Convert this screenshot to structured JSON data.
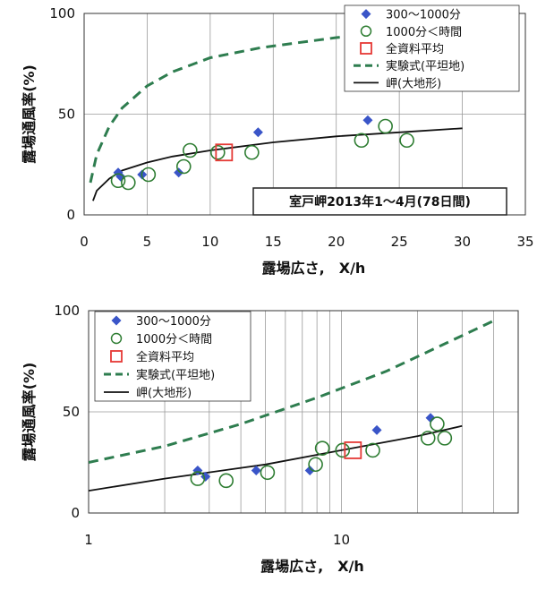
{
  "chart_data": [
    {
      "type": "scatter",
      "x_scale": "linear",
      "xlabel": "露場広さ,　X/h",
      "ylabel": "露場通風率(%)",
      "xlim": [
        0,
        35
      ],
      "ylim": [
        0,
        100
      ],
      "x_ticks": [
        "0",
        "5",
        "10",
        "15",
        "20",
        "25",
        "30",
        "35"
      ],
      "y_ticks": [
        "0",
        "50",
        "100"
      ],
      "grid": true,
      "legend_position": "top-right",
      "annotation": "室戸岬2013年1～4月(78日間)",
      "series": [
        {
          "name": "300～1000分",
          "kind": "diamond",
          "color": "#3a55c8",
          "points": [
            [
              2.7,
              21
            ],
            [
              2.9,
              19
            ],
            [
              4.6,
              20
            ],
            [
              7.5,
              21
            ],
            [
              13.8,
              41
            ],
            [
              22.5,
              47
            ]
          ]
        },
        {
          "name": "1000分＜時間",
          "kind": "circle",
          "color": "#2e7d32",
          "points": [
            [
              2.7,
              17
            ],
            [
              3.5,
              16
            ],
            [
              5.1,
              20
            ],
            [
              7.9,
              24
            ],
            [
              8.4,
              32
            ],
            [
              10.6,
              31
            ],
            [
              13.3,
              31
            ],
            [
              22.0,
              37
            ],
            [
              23.9,
              44
            ],
            [
              25.6,
              37
            ]
          ]
        },
        {
          "name": "全資料平均",
          "kind": "square",
          "color": "#e53935",
          "points": [
            [
              11.1,
              31
            ]
          ]
        },
        {
          "name": "実験式(平坦地)",
          "kind": "dash-line",
          "color": "#2e7d4f",
          "points": [
            [
              0.5,
              16
            ],
            [
              1,
              30
            ],
            [
              2,
              44
            ],
            [
              3,
              53
            ],
            [
              5,
              64
            ],
            [
              7,
              71
            ],
            [
              10,
              78
            ],
            [
              14,
              83
            ],
            [
              20,
              88
            ],
            [
              24,
              90
            ]
          ]
        },
        {
          "name": "岬(大地形)",
          "kind": "solid-line",
          "color": "#111111",
          "points": [
            [
              0.7,
              7
            ],
            [
              1,
              12
            ],
            [
              2,
              18
            ],
            [
              3,
              22
            ],
            [
              5,
              26
            ],
            [
              7,
              29
            ],
            [
              10,
              32
            ],
            [
              15,
              36
            ],
            [
              20,
              39
            ],
            [
              25,
              41
            ],
            [
              30,
              43
            ]
          ]
        }
      ]
    },
    {
      "type": "scatter",
      "x_scale": "log",
      "xlabel": "露場広さ,　X/h",
      "ylabel": "露場通風率(%)",
      "xlim": [
        1,
        50
      ],
      "ylim": [
        0,
        100
      ],
      "x_ticks": [
        "1",
        "10"
      ],
      "y_ticks": [
        "0",
        "50",
        "100"
      ],
      "grid": true,
      "legend_position": "top-left",
      "series": [
        {
          "name": "300～1000分",
          "kind": "diamond",
          "color": "#3a55c8",
          "points": [
            [
              2.7,
              21
            ],
            [
              2.9,
              18
            ],
            [
              4.6,
              21
            ],
            [
              7.5,
              21
            ],
            [
              13.8,
              41
            ],
            [
              22.5,
              47
            ]
          ]
        },
        {
          "name": "1000分＜時間",
          "kind": "circle",
          "color": "#2e7d32",
          "points": [
            [
              2.7,
              17
            ],
            [
              3.5,
              16
            ],
            [
              5.1,
              20
            ],
            [
              7.9,
              24
            ],
            [
              8.4,
              32
            ],
            [
              10.1,
              31
            ],
            [
              13.3,
              31
            ],
            [
              22.0,
              37
            ],
            [
              23.9,
              44
            ],
            [
              25.6,
              37
            ]
          ]
        },
        {
          "name": "全資料平均",
          "kind": "square",
          "color": "#e53935",
          "points": [
            [
              11.1,
              31
            ]
          ]
        },
        {
          "name": "実験式(平坦地)",
          "kind": "dash-line",
          "color": "#2e7d4f",
          "points": [
            [
              1,
              25
            ],
            [
              2,
              33
            ],
            [
              4,
              44
            ],
            [
              8,
              57
            ],
            [
              15,
              70
            ],
            [
              25,
              83
            ],
            [
              40,
              95
            ]
          ]
        },
        {
          "name": "岬(大地形)",
          "kind": "solid-line",
          "color": "#111111",
          "points": [
            [
              1,
              11
            ],
            [
              2,
              17
            ],
            [
              5,
              24
            ],
            [
              10,
              31
            ],
            [
              20,
              38
            ],
            [
              30,
              43
            ]
          ]
        }
      ]
    }
  ]
}
